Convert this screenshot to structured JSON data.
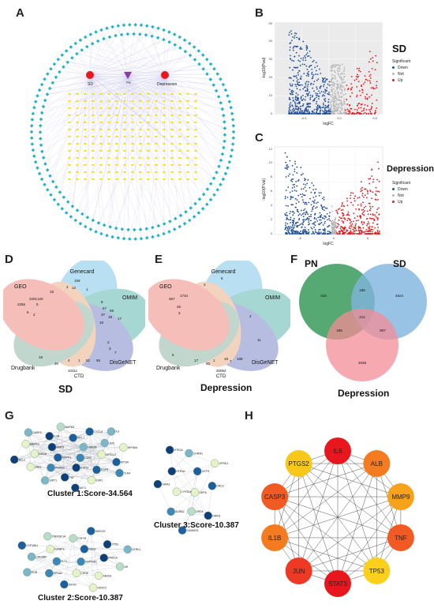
{
  "panels": {
    "A": "A",
    "B": "B",
    "C": "C",
    "D": "D",
    "E": "E",
    "F": "F",
    "G": "G",
    "H": "H"
  },
  "panel_a": {
    "node_sd": "SD",
    "node_depression": "Depression",
    "node_center": "PN"
  },
  "panel_b": {
    "title": "SD",
    "xlabel": "logFC",
    "ylabel": "-log10(Pval)",
    "legend_title": "Significant",
    "legend": [
      "Down",
      "Not",
      "Up"
    ],
    "xticks": [
      "-0.5",
      "0.0",
      "0.5"
    ],
    "yticks": [
      "0",
      "10",
      "20",
      "30",
      "40",
      "50"
    ]
  },
  "panel_c": {
    "title": "Depression",
    "xlabel": "logFC",
    "ylabel": "-log10(P.Val)",
    "legend_title": "Significant",
    "legend": [
      "Down",
      "Not",
      "Up"
    ],
    "xticks": [
      "-5",
      "0",
      "5"
    ],
    "yticks": [
      "0",
      "2",
      "4",
      "6",
      "8",
      "10",
      "12"
    ]
  },
  "panel_d": {
    "title": "SD",
    "sets": [
      "Genecard",
      "OMIM",
      "DisGeNET",
      "CTD",
      "Drugbank",
      "GEO"
    ],
    "numbers": [
      "159",
      "4",
      "12",
      "1",
      "15",
      "2201",
      "120",
      "2256",
      "5",
      "6",
      "2",
      "67",
      "69",
      "17",
      "8",
      "37",
      "19",
      "16",
      "2",
      "3",
      "7",
      "52",
      "55",
      "4",
      "1",
      "19",
      "20",
      "10311"
    ]
  },
  "panel_e": {
    "title": "Depression",
    "sets": [
      "Genecard",
      "OMIM",
      "DisGeNET",
      "CTD",
      "Drugbank",
      "GEO"
    ],
    "numbers": [
      "6",
      "2",
      "1734",
      "367",
      "26",
      "3",
      "4",
      "11",
      "5",
      "17",
      "19",
      "189",
      "20052",
      "1",
      "7",
      "20"
    ]
  },
  "panel_f": {
    "sets": [
      "PN",
      "SD",
      "Depression"
    ],
    "regions": [
      "415",
      "158",
      "4524",
      "214",
      "185",
      "807",
      "2038"
    ]
  },
  "panel_g": {
    "cluster1": "Cluster 1:Score-34.564",
    "cluster2": "Cluster 2:Score-10.387",
    "cluster3": "Cluster 3:Score-10.387",
    "c1_genes": [
      "CDK2",
      "MAPK1",
      "GSK3B",
      "STAT3",
      "MMP9",
      "NFE2L2",
      "PPARG",
      "MCL1",
      "EGFR",
      "HIF1A",
      "JUN",
      "TNF",
      "IL1B",
      "MTOR",
      "JAK2",
      "CXCL8",
      "ESR1",
      "MAPK3",
      "NFKBIA",
      "SIRT1",
      "MAPK8",
      "TLR4",
      "BCL2",
      "IL6",
      "AKT1",
      "CASP3"
    ],
    "c2_genes": [
      "HSP90B1",
      "FLT1",
      "NOS2",
      "CHUK",
      "IGFBP3",
      "PRKCA",
      "EPHA2",
      "CSF1R",
      "ABCB1",
      "CREBBP",
      "TP53",
      "IGF1R",
      "TNFRSF1A",
      "AR",
      "PGR",
      "HMGCR",
      "HDAC2",
      "CYP19A1",
      "NTRK1"
    ],
    "c3_genes": [
      "GRPD",
      "CYP2D6",
      "OXTR",
      "DRD4",
      "HTR1A",
      "DRD2",
      "ADRB2",
      "CHRM1",
      "GRIN1",
      "GRIA1",
      "OPRD1",
      "SIGMAR1",
      "HTR2A"
    ]
  },
  "panel_h": {
    "genes": [
      "IL6",
      "ALB",
      "MMP9",
      "TNF",
      "TP53",
      "STAT3",
      "JUN",
      "IL1B",
      "CASP3",
      "PTGS2"
    ],
    "colors": [
      "#e8171d",
      "#f47b20",
      "#f7a21b",
      "#f15a22",
      "#fbd01c",
      "#e8171d",
      "#ee3a24",
      "#f47b20",
      "#f15a22",
      "#f7c71c"
    ]
  }
}
